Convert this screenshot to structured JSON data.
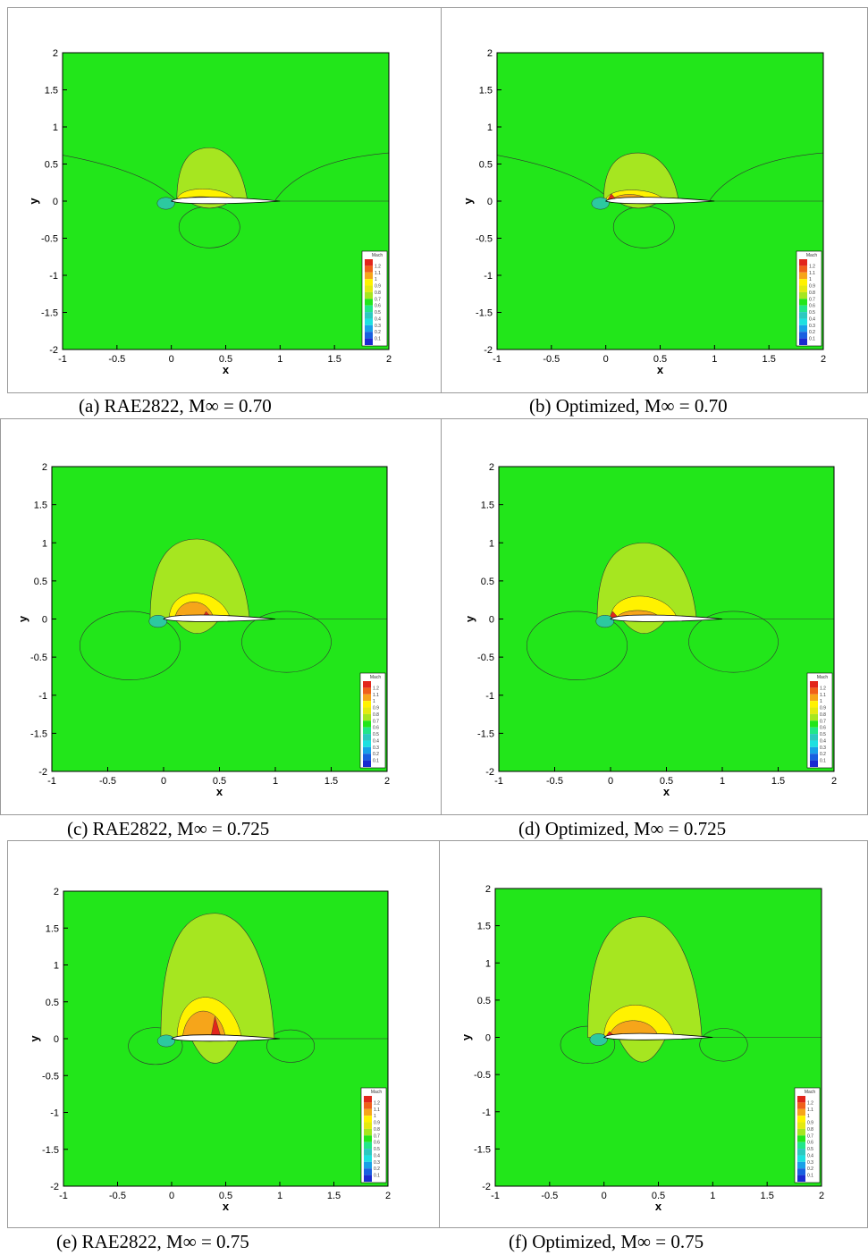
{
  "figure": {
    "panels": [
      {
        "caption": "(a) RAE2822, M∞ = 0.70"
      },
      {
        "caption": "(b) Optimized, M∞ = 0.70"
      },
      {
        "caption": "(c) RAE2822, M∞ = 0.725"
      },
      {
        "caption": "(d) Optimized, M∞ = 0.725"
      },
      {
        "caption": "(e) RAE2822, M∞ = 0.75"
      },
      {
        "caption": "(f) Optimized, M∞ = 0.75"
      }
    ]
  },
  "colors": {
    "background_field": "#22e61a",
    "mach_0_8": "#a6e620",
    "mach_0_9": "#e4ea10",
    "mach_1_0": "#fff200",
    "mach_1_1": "#f6a51a",
    "mach_1_2": "#e2251b",
    "stagnation": "#2cc9a0"
  },
  "chart_data": [
    {
      "type": "heatmap",
      "title": "",
      "xlabel": "x",
      "ylabel": "y",
      "xlim": [
        -1,
        2
      ],
      "ylim": [
        -2,
        2
      ],
      "xticks": [
        "-1",
        "-0.5",
        "0",
        "0.5",
        "1",
        "1.5",
        "2"
      ],
      "yticks": [
        "-2",
        "-1.5",
        "-1",
        "-0.5",
        "0",
        "0.5",
        "1",
        "1.5",
        "2"
      ],
      "legend": {
        "title": "Mach",
        "levels": [
          "1.2",
          "1.1",
          "1",
          "0.9",
          "0.8",
          "0.7",
          "0.6",
          "0.5",
          "0.4",
          "0.3",
          "0.2",
          "0.1"
        ],
        "placement": "bottom-right"
      },
      "airfoil": "RAE2822",
      "mach_freestream": 0.7
    },
    {
      "type": "heatmap",
      "title": "",
      "xlabel": "x",
      "ylabel": "y",
      "xlim": [
        -1,
        2
      ],
      "ylim": [
        -2,
        2
      ],
      "xticks": [
        "-1",
        "-0.5",
        "0",
        "0.5",
        "1",
        "1.5",
        "2"
      ],
      "yticks": [
        "-2",
        "-1.5",
        "-1",
        "-0.5",
        "0",
        "0.5",
        "1",
        "1.5",
        "2"
      ],
      "legend": {
        "title": "Mach",
        "levels": [
          "1.2",
          "1.1",
          "1",
          "0.9",
          "0.8",
          "0.7",
          "0.6",
          "0.5",
          "0.4",
          "0.3",
          "0.2",
          "0.1"
        ],
        "placement": "bottom-right"
      },
      "airfoil": "Optimized",
      "mach_freestream": 0.7
    },
    {
      "type": "heatmap",
      "title": "",
      "xlabel": "x",
      "ylabel": "y",
      "xlim": [
        -1,
        2
      ],
      "ylim": [
        -2,
        2
      ],
      "xticks": [
        "-1",
        "-0.5",
        "0",
        "0.5",
        "1",
        "1.5",
        "2"
      ],
      "yticks": [
        "-2",
        "-1.5",
        "-1",
        "-0.5",
        "0",
        "0.5",
        "1",
        "1.5",
        "2"
      ],
      "legend": {
        "title": "Mach",
        "levels": [
          "1.2",
          "1.1",
          "1",
          "0.9",
          "0.8",
          "0.7",
          "0.6",
          "0.5",
          "0.4",
          "0.3",
          "0.2",
          "0.1"
        ],
        "placement": "bottom-right"
      },
      "airfoil": "RAE2822",
      "mach_freestream": 0.725
    },
    {
      "type": "heatmap",
      "title": "",
      "xlabel": "x",
      "ylabel": "y",
      "xlim": [
        -1,
        2
      ],
      "ylim": [
        -2,
        2
      ],
      "xticks": [
        "-1",
        "-0.5",
        "0",
        "0.5",
        "1",
        "1.5",
        "2"
      ],
      "yticks": [
        "-2",
        "-1.5",
        "-1",
        "-0.5",
        "0",
        "0.5",
        "1",
        "1.5",
        "2"
      ],
      "legend": {
        "title": "Mach",
        "levels": [
          "1.2",
          "1.1",
          "1",
          "0.9",
          "0.8",
          "0.7",
          "0.6",
          "0.5",
          "0.4",
          "0.3",
          "0.2",
          "0.1"
        ],
        "placement": "bottom-right"
      },
      "airfoil": "Optimized",
      "mach_freestream": 0.725
    },
    {
      "type": "heatmap",
      "title": "",
      "xlabel": "x",
      "ylabel": "y",
      "xlim": [
        -1,
        2
      ],
      "ylim": [
        -2,
        2
      ],
      "xticks": [
        "-1",
        "-0.5",
        "0",
        "0.5",
        "1",
        "1.5",
        "2"
      ],
      "yticks": [
        "-2",
        "-1.5",
        "-1",
        "-0.5",
        "0",
        "0.5",
        "1",
        "1.5",
        "2"
      ],
      "legend": {
        "title": "Mach",
        "levels": [
          "1.2",
          "1.1",
          "1",
          "0.9",
          "0.8",
          "0.7",
          "0.6",
          "0.5",
          "0.4",
          "0.3",
          "0.2",
          "0.1"
        ],
        "placement": "bottom-right"
      },
      "airfoil": "RAE2822",
      "mach_freestream": 0.75
    },
    {
      "type": "heatmap",
      "title": "",
      "xlabel": "x",
      "ylabel": "y",
      "xlim": [
        -1,
        2
      ],
      "ylim": [
        -2,
        2
      ],
      "xticks": [
        "-1",
        "-0.5",
        "0",
        "0.5",
        "1",
        "1.5",
        "2"
      ],
      "yticks": [
        "-2",
        "-1.5",
        "-1",
        "-0.5",
        "0",
        "0.5",
        "1",
        "1.5",
        "2"
      ],
      "legend": {
        "title": "Mach",
        "levels": [
          "1.2",
          "1.1",
          "1",
          "0.9",
          "0.8",
          "0.7",
          "0.6",
          "0.5",
          "0.4",
          "0.3",
          "0.2",
          "0.1"
        ],
        "placement": "bottom-right"
      },
      "airfoil": "Optimized",
      "mach_freestream": 0.75
    }
  ]
}
